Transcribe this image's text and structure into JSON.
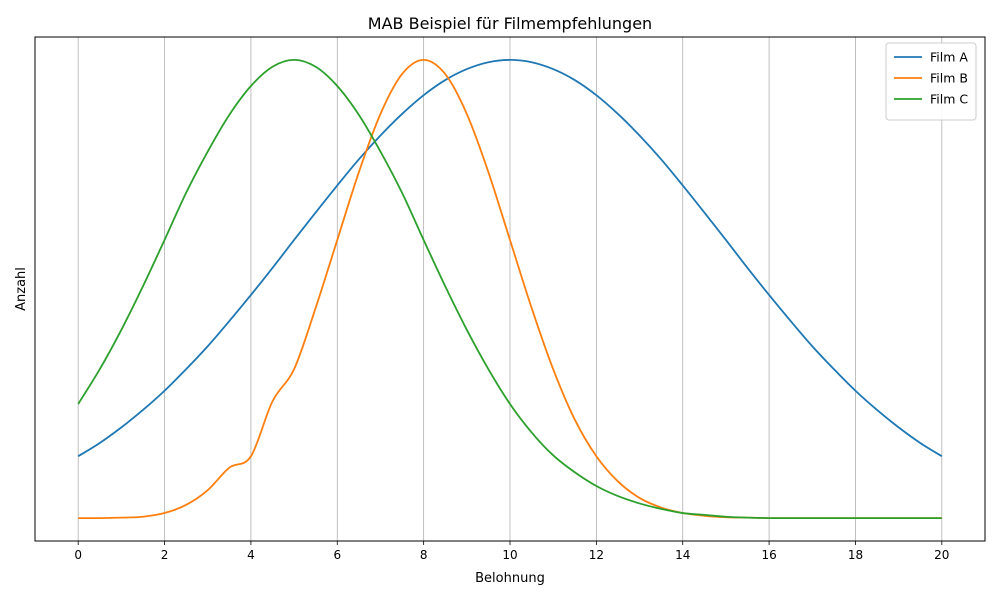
{
  "chart_data": {
    "type": "line",
    "title": "MAB Beispiel für Filmempfehlungen",
    "xlabel": "Belohnung",
    "ylabel": "Anzahl",
    "xlim": [
      -1,
      21
    ],
    "ylim": [
      -0.05,
      1.05
    ],
    "xticks": [
      0,
      2,
      4,
      6,
      8,
      10,
      12,
      14,
      16,
      18,
      20
    ],
    "xtick_labels": [
      "0",
      "2",
      "4",
      "6",
      "8",
      "10",
      "12",
      "14",
      "16",
      "18",
      "20"
    ],
    "yticks_shown": false,
    "grid": "vertical",
    "legend_position": "top-right",
    "x": [
      0,
      0.5,
      1,
      1.5,
      2,
      2.5,
      3,
      3.5,
      4,
      4.5,
      5,
      5.5,
      6,
      6.5,
      7,
      7.5,
      8,
      8.5,
      9,
      9.5,
      10,
      10.5,
      11,
      11.5,
      12,
      12.5,
      13,
      13.5,
      14,
      14.5,
      15,
      15.5,
      16,
      16.5,
      17,
      17.5,
      18,
      18.5,
      19,
      19.5,
      20
    ],
    "series": [
      {
        "name": "Film A",
        "color": "#1f77b4",
        "values": [
          0.135,
          0.164,
          0.198,
          0.236,
          0.278,
          0.325,
          0.375,
          0.43,
          0.487,
          0.546,
          0.607,
          0.667,
          0.726,
          0.783,
          0.835,
          0.882,
          0.923,
          0.956,
          0.98,
          0.995,
          1.0,
          0.995,
          0.98,
          0.956,
          0.923,
          0.882,
          0.835,
          0.783,
          0.726,
          0.667,
          0.607,
          0.546,
          0.487,
          0.43,
          0.375,
          0.325,
          0.278,
          0.236,
          0.198,
          0.164,
          0.135
        ]
      },
      {
        "name": "Film B",
        "color": "#ff7f0e",
        "values": [
          0.0,
          0.0,
          0.001,
          0.003,
          0.011,
          0.029,
          0.061,
          0.11,
          0.135,
          0.255,
          0.325,
          0.459,
          0.607,
          0.755,
          0.882,
          0.969,
          1.0,
          0.969,
          0.882,
          0.755,
          0.607,
          0.459,
          0.325,
          0.215,
          0.135,
          0.08,
          0.044,
          0.023,
          0.011,
          0.005,
          0.002,
          0.001,
          0.0,
          0.0,
          0.0,
          0.0,
          0.0,
          0.0,
          0.0,
          0.0,
          0.0
        ]
      },
      {
        "name": "Film C",
        "color": "#2ca02c",
        "values": [
          0.249,
          0.325,
          0.411,
          0.506,
          0.607,
          0.71,
          0.8,
          0.88,
          0.943,
          0.985,
          1.0,
          0.985,
          0.943,
          0.88,
          0.8,
          0.71,
          0.607,
          0.506,
          0.411,
          0.325,
          0.249,
          0.187,
          0.137,
          0.1,
          0.07,
          0.048,
          0.032,
          0.02,
          0.011,
          0.007,
          0.003,
          0.001,
          0.0,
          0.0,
          0.0,
          0.0,
          0.0,
          0.0,
          0.0,
          0.0,
          0.0
        ]
      }
    ]
  }
}
